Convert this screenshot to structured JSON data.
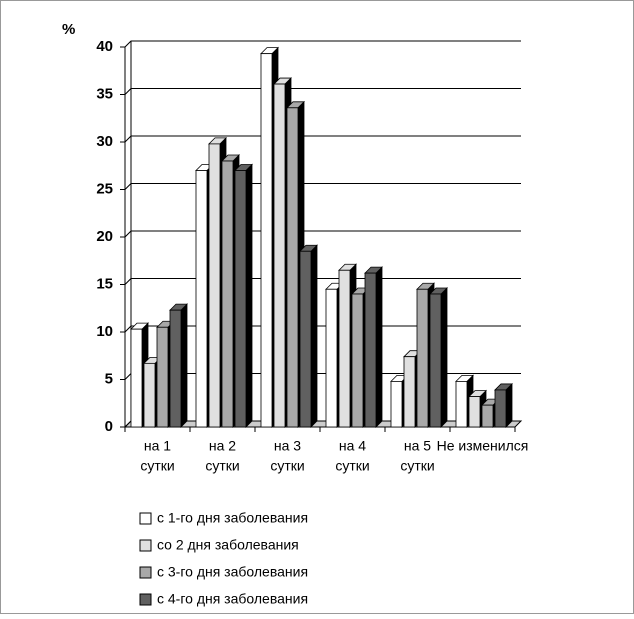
{
  "chart_data": {
    "type": "bar3d",
    "y_label": "%",
    "categories": [
      [
        "на 1",
        "сутки"
      ],
      [
        "на 2",
        "сутки"
      ],
      [
        "на 3",
        "сутки"
      ],
      [
        "на 4",
        "сутки"
      ],
      [
        "на 5",
        "сутки"
      ],
      [
        "Не изменился"
      ]
    ],
    "series": [
      {
        "name": "с 1-го дня заболевания",
        "color": "#ffffff",
        "values": [
          10.3,
          27,
          39.3,
          14.5,
          4.8,
          4.8
        ]
      },
      {
        "name": "со 2 дня заболевания",
        "color": "#e0e0e0",
        "values": [
          6.7,
          29.8,
          36.1,
          16.5,
          7.4,
          3.2
        ]
      },
      {
        "name": "с 3-го дня заболевания",
        "color": "#a8a8a8",
        "values": [
          10.5,
          28,
          33.6,
          14,
          14.5,
          2.3
        ]
      },
      {
        "name": "с 4-го дня заболевания",
        "color": "#606060",
        "values": [
          12.3,
          27,
          18.5,
          16.2,
          14,
          3.9
        ]
      }
    ],
    "ylim": [
      0,
      40
    ],
    "yticks": [
      0,
      5,
      10,
      15,
      20,
      25,
      30,
      35,
      40
    ],
    "grid": true
  }
}
